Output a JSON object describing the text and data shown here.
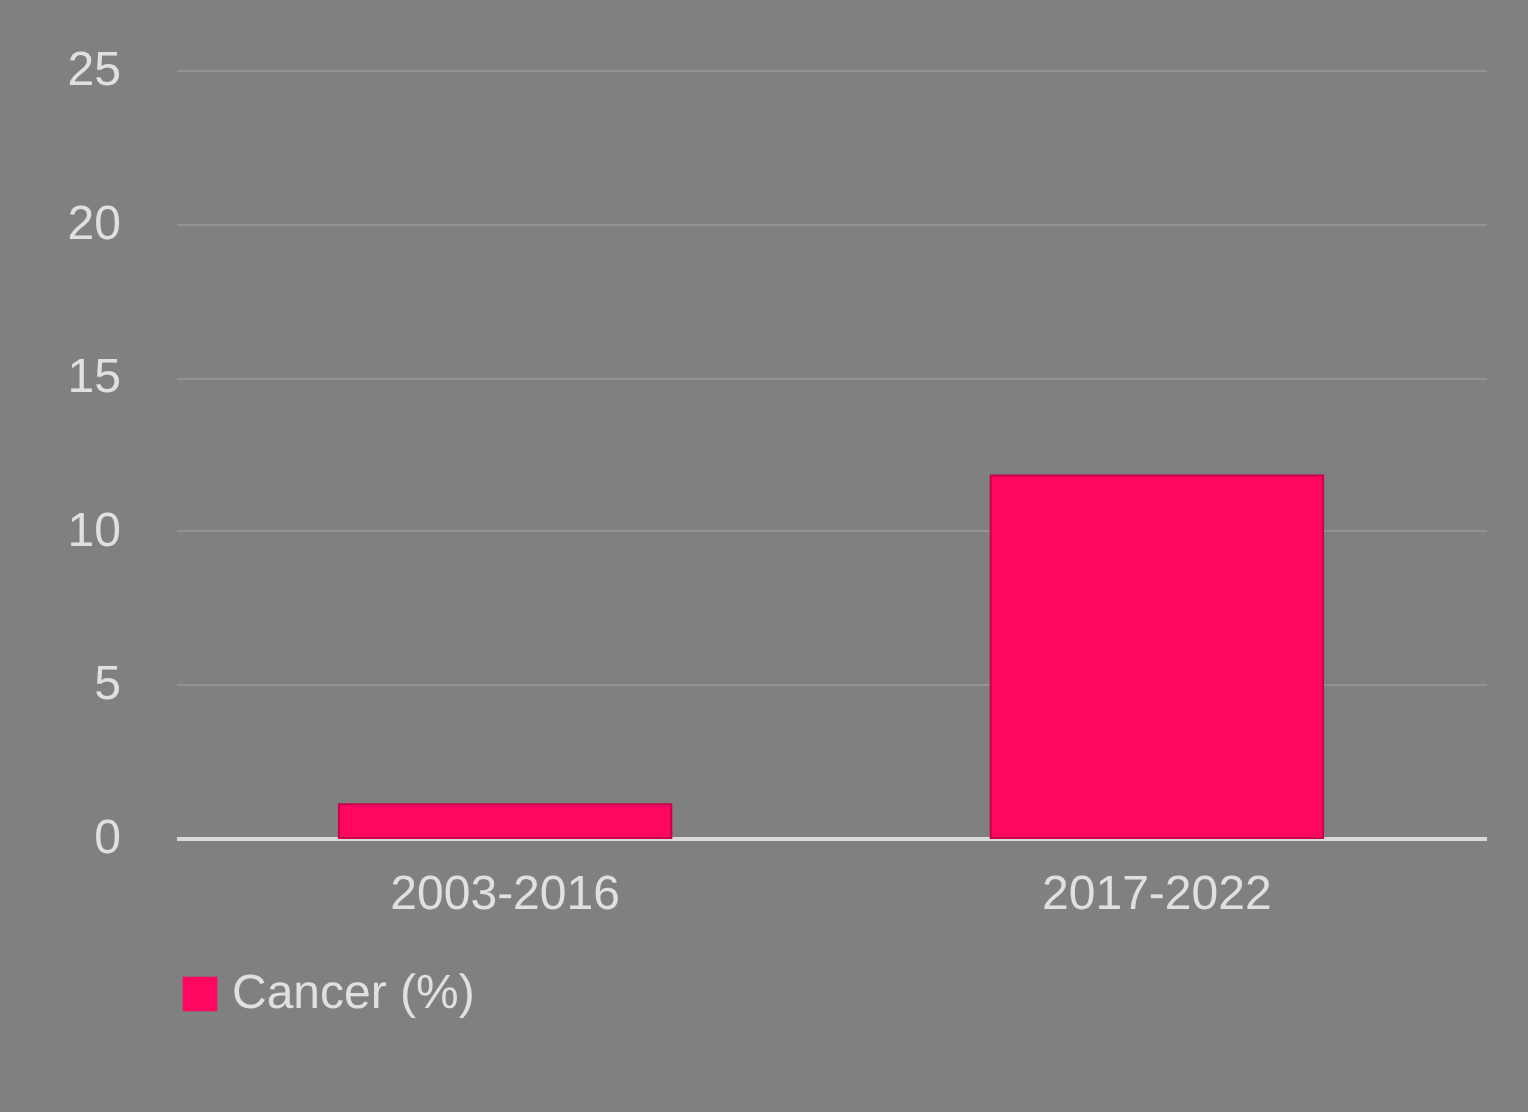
{
  "chart_data": {
    "type": "bar",
    "categories": [
      "2003-2016",
      "2017-2022"
    ],
    "series": [
      {
        "name": "Cancer (%)",
        "color": "#ff0660",
        "values": [
          1.1,
          11.8
        ]
      }
    ],
    "ylim": [
      0,
      25
    ],
    "yticks": [
      0,
      5,
      10,
      15,
      20,
      25
    ],
    "grid": "y",
    "legend": "bottom"
  }
}
